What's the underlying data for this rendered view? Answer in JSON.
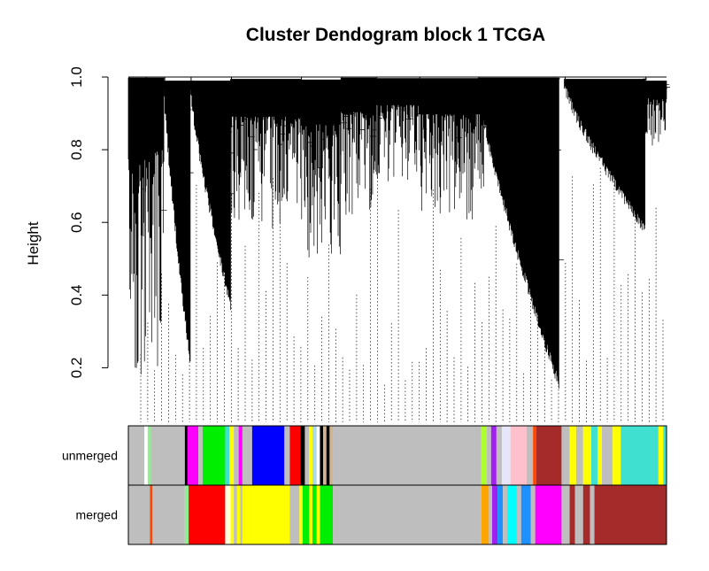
{
  "chart_data": {
    "type": "dendrogram",
    "title": "Cluster Dendogram block 1 TCGA",
    "ylabel": "Height",
    "xlabel": "",
    "ylim": [
      0.05,
      1.0
    ],
    "yticks": [
      0.2,
      0.4,
      0.6,
      0.8,
      1.0
    ],
    "ytick_labels": [
      "0.2",
      "0.4",
      "0.6",
      "0.8",
      "1.0"
    ],
    "grid": false,
    "n_leaves_shown": 76,
    "branches": [
      {
        "from": 0.0,
        "to": 0.032,
        "top": 0.998,
        "floor": 0.1,
        "dense": true
      },
      {
        "from": 0.032,
        "to": 0.066,
        "top": 0.998,
        "floor": 0.2,
        "dense": true
      },
      {
        "from": 0.066,
        "to": 0.115,
        "top": 0.99,
        "floor": 0.23,
        "slope": true,
        "low": 0.23
      },
      {
        "from": 0.115,
        "to": 0.19,
        "top": 0.99,
        "floor": 0.4,
        "slope": true,
        "low": 0.39
      },
      {
        "from": 0.19,
        "to": 0.32,
        "top": 0.995,
        "floor": 0.58,
        "dense": true
      },
      {
        "from": 0.32,
        "to": 0.395,
        "top": 0.993,
        "floor": 0.5,
        "dense": true
      },
      {
        "from": 0.395,
        "to": 0.46,
        "top": 0.998,
        "floor": 0.62,
        "dense": true
      },
      {
        "from": 0.46,
        "to": 0.54,
        "top": 0.997,
        "floor": 0.7,
        "dense": true
      },
      {
        "from": 0.54,
        "to": 0.66,
        "top": 0.997,
        "floor": 0.6,
        "dense": true
      },
      {
        "from": 0.65,
        "to": 0.8,
        "top": 0.998,
        "floor": 0.17,
        "slope": true,
        "low": 0.17
      },
      {
        "from": 0.81,
        "to": 0.96,
        "top": 0.995,
        "floor": 0.6,
        "slope": true,
        "low": 0.6
      },
      {
        "from": 0.96,
        "to": 1.0,
        "top": 0.99,
        "floor": 0.8,
        "dense": true
      }
    ],
    "rows": [
      {
        "label": "unmerged",
        "segments": [
          {
            "from": 0.0,
            "to": 0.03,
            "color": "#bebebe"
          },
          {
            "from": 0.03,
            "to": 0.036,
            "color": "#ffffff"
          },
          {
            "from": 0.036,
            "to": 0.042,
            "color": "#90ee90"
          },
          {
            "from": 0.042,
            "to": 0.105,
            "color": "#bebebe"
          },
          {
            "from": 0.105,
            "to": 0.11,
            "color": "#000000"
          },
          {
            "from": 0.11,
            "to": 0.13,
            "color": "#ff00ff"
          },
          {
            "from": 0.13,
            "to": 0.138,
            "color": "#bebebe"
          },
          {
            "from": 0.138,
            "to": 0.18,
            "color": "#00ee00"
          },
          {
            "from": 0.18,
            "to": 0.188,
            "color": "#40e0d0"
          },
          {
            "from": 0.188,
            "to": 0.196,
            "color": "#ffff00"
          },
          {
            "from": 0.196,
            "to": 0.205,
            "color": "#bebebe"
          },
          {
            "from": 0.205,
            "to": 0.212,
            "color": "#ff00ff"
          },
          {
            "from": 0.212,
            "to": 0.23,
            "color": "#bebebe"
          },
          {
            "from": 0.23,
            "to": 0.29,
            "color": "#0000ff"
          },
          {
            "from": 0.29,
            "to": 0.3,
            "color": "#bebebe"
          },
          {
            "from": 0.3,
            "to": 0.32,
            "color": "#ff0000"
          },
          {
            "from": 0.32,
            "to": 0.328,
            "color": "#000000"
          },
          {
            "from": 0.328,
            "to": 0.336,
            "color": "#bebebe"
          },
          {
            "from": 0.336,
            "to": 0.342,
            "color": "#ffff00"
          },
          {
            "from": 0.342,
            "to": 0.35,
            "color": "#add8e6"
          },
          {
            "from": 0.35,
            "to": 0.356,
            "color": "#ffffff"
          },
          {
            "from": 0.356,
            "to": 0.362,
            "color": "#000000"
          },
          {
            "from": 0.362,
            "to": 0.368,
            "color": "#d2b48c"
          },
          {
            "from": 0.368,
            "to": 0.374,
            "color": "#000000"
          },
          {
            "from": 0.374,
            "to": 0.38,
            "color": "#d2b48c"
          },
          {
            "from": 0.38,
            "to": 0.656,
            "color": "#bebebe"
          },
          {
            "from": 0.656,
            "to": 0.666,
            "color": "#adff2f"
          },
          {
            "from": 0.666,
            "to": 0.674,
            "color": "#bebebe"
          },
          {
            "from": 0.674,
            "to": 0.684,
            "color": "#a020f0"
          },
          {
            "from": 0.684,
            "to": 0.694,
            "color": "#bebebe"
          },
          {
            "from": 0.694,
            "to": 0.71,
            "color": "#e6e6fa"
          },
          {
            "from": 0.71,
            "to": 0.74,
            "color": "#ffc0cb"
          },
          {
            "from": 0.74,
            "to": 0.752,
            "color": "#bebebe"
          },
          {
            "from": 0.752,
            "to": 0.758,
            "color": "#ff4500"
          },
          {
            "from": 0.758,
            "to": 0.805,
            "color": "#a52a2a"
          },
          {
            "from": 0.805,
            "to": 0.82,
            "color": "#bebebe"
          },
          {
            "from": 0.82,
            "to": 0.832,
            "color": "#ffff00"
          },
          {
            "from": 0.832,
            "to": 0.845,
            "color": "#bebebe"
          },
          {
            "from": 0.845,
            "to": 0.86,
            "color": "#ffff00"
          },
          {
            "from": 0.86,
            "to": 0.872,
            "color": "#40e0d0"
          },
          {
            "from": 0.872,
            "to": 0.88,
            "color": "#ffff00"
          },
          {
            "from": 0.88,
            "to": 0.9,
            "color": "#bebebe"
          },
          {
            "from": 0.9,
            "to": 0.915,
            "color": "#ffff00"
          },
          {
            "from": 0.915,
            "to": 0.985,
            "color": "#40e0d0"
          },
          {
            "from": 0.985,
            "to": 0.994,
            "color": "#ffff00"
          },
          {
            "from": 0.994,
            "to": 1.0,
            "color": "#40e0d0"
          }
        ]
      },
      {
        "label": "merged",
        "segments": [
          {
            "from": 0.0,
            "to": 0.04,
            "color": "#bebebe"
          },
          {
            "from": 0.04,
            "to": 0.045,
            "color": "#ff4500"
          },
          {
            "from": 0.045,
            "to": 0.105,
            "color": "#bebebe"
          },
          {
            "from": 0.105,
            "to": 0.112,
            "color": "#90ee90"
          },
          {
            "from": 0.112,
            "to": 0.18,
            "color": "#ff0000"
          },
          {
            "from": 0.18,
            "to": 0.19,
            "color": "#ffffe0"
          },
          {
            "from": 0.19,
            "to": 0.196,
            "color": "#ffff00"
          },
          {
            "from": 0.196,
            "to": 0.202,
            "color": "#bebebe"
          },
          {
            "from": 0.202,
            "to": 0.208,
            "color": "#ffff00"
          },
          {
            "from": 0.208,
            "to": 0.212,
            "color": "#bebebe"
          },
          {
            "from": 0.212,
            "to": 0.3,
            "color": "#ffff00"
          },
          {
            "from": 0.3,
            "to": 0.318,
            "color": "#bebebe"
          },
          {
            "from": 0.318,
            "to": 0.324,
            "color": "#ffff00"
          },
          {
            "from": 0.324,
            "to": 0.336,
            "color": "#00ee00"
          },
          {
            "from": 0.336,
            "to": 0.342,
            "color": "#ffff00"
          },
          {
            "from": 0.342,
            "to": 0.35,
            "color": "#00ee00"
          },
          {
            "from": 0.35,
            "to": 0.356,
            "color": "#ffff00"
          },
          {
            "from": 0.356,
            "to": 0.38,
            "color": "#00ee00"
          },
          {
            "from": 0.38,
            "to": 0.656,
            "color": "#bebebe"
          },
          {
            "from": 0.656,
            "to": 0.67,
            "color": "#ffa500"
          },
          {
            "from": 0.67,
            "to": 0.676,
            "color": "#bebebe"
          },
          {
            "from": 0.676,
            "to": 0.686,
            "color": "#a020f0"
          },
          {
            "from": 0.686,
            "to": 0.696,
            "color": "#1e90ff"
          },
          {
            "from": 0.696,
            "to": 0.704,
            "color": "#bebebe"
          },
          {
            "from": 0.704,
            "to": 0.722,
            "color": "#00ffff"
          },
          {
            "from": 0.722,
            "to": 0.73,
            "color": "#bebebe"
          },
          {
            "from": 0.73,
            "to": 0.748,
            "color": "#1e90ff"
          },
          {
            "from": 0.748,
            "to": 0.756,
            "color": "#bebebe"
          },
          {
            "from": 0.756,
            "to": 0.805,
            "color": "#ff00ff"
          },
          {
            "from": 0.805,
            "to": 0.82,
            "color": "#bebebe"
          },
          {
            "from": 0.82,
            "to": 0.83,
            "color": "#a52a2a"
          },
          {
            "from": 0.83,
            "to": 0.845,
            "color": "#bebebe"
          },
          {
            "from": 0.845,
            "to": 0.858,
            "color": "#a52a2a"
          },
          {
            "from": 0.858,
            "to": 0.866,
            "color": "#bebebe"
          },
          {
            "from": 0.866,
            "to": 1.0,
            "color": "#a52a2a"
          }
        ]
      }
    ]
  }
}
